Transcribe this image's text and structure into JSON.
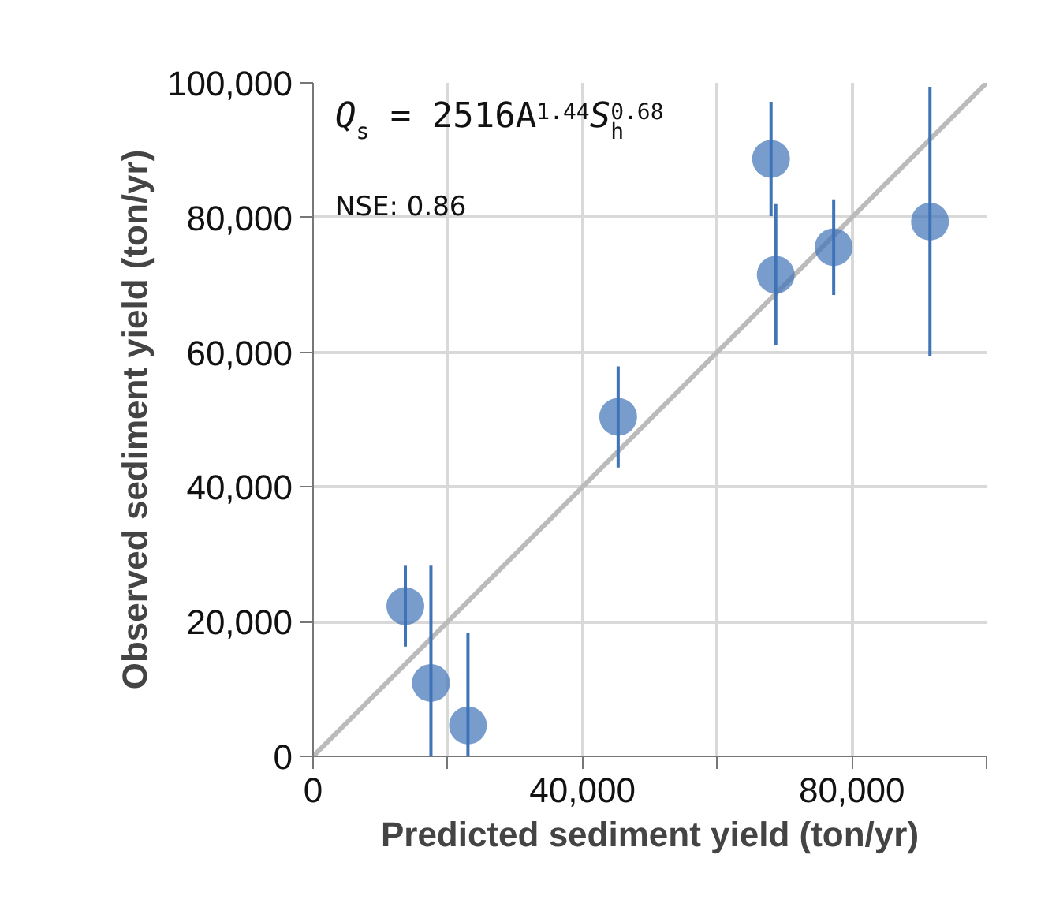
{
  "chart_data": {
    "type": "scatter",
    "xlabel": "Predicted sediment yield (ton/yr)",
    "ylabel": "Observed sediment yield (ton/yr)",
    "xlim": [
      0,
      100000
    ],
    "ylim": [
      0,
      100000
    ],
    "xticks": [
      0,
      {
        "value": 20000,
        "label": null
      },
      {
        "value": 40000,
        "label": "40,000"
      },
      {
        "value": 60000,
        "label": null
      },
      {
        "value": 80000,
        "label": "80,000"
      },
      {
        "value": 100000,
        "label": null
      }
    ],
    "yticks": [
      0,
      {
        "value": 20000,
        "label": "20,000"
      },
      {
        "value": 40000,
        "label": "40,000"
      },
      {
        "value": 60000,
        "label": "60,000"
      },
      {
        "value": 80000,
        "label": "80,000"
      },
      {
        "value": 100000,
        "label": "100,000"
      }
    ],
    "grid": true,
    "annotations": [
      "Q$_{s}$ = 2516A$^{1.44}$S$_{h}$$^{0.68}$",
      "NSE: 0.86"
    ],
    "series": [
      {
        "type": "line",
        "color": "#bbbbbb",
        "marker": "none",
        "x": [
          0,
          100000
        ],
        "values": [
          0,
          100000
        ]
      },
      {
        "color": "#3f74b8",
        "marker": "circle",
        "x": [
          13700,
          17500,
          23000,
          45300,
          68000,
          68700,
          77300,
          91600
        ],
        "values": [
          22300,
          10900,
          4600,
          50400,
          88700,
          71500,
          75600,
          79400
        ],
        "errors": [
          [
            16300,
            28300
          ],
          [
            0,
            28300
          ],
          [
            0,
            18300
          ],
          [
            42900,
            57900
          ],
          [
            80200,
            97200
          ],
          [
            61000,
            82000
          ],
          [
            68500,
            82700
          ],
          [
            59400,
            99400
          ]
        ]
      }
    ]
  }
}
